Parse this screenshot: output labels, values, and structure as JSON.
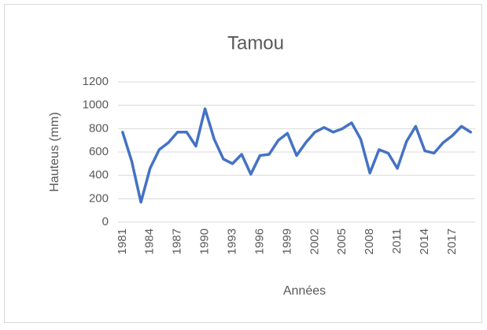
{
  "chart_data": {
    "type": "line",
    "title": "Tamou",
    "x_label": "Années",
    "y_label": "Hauteus (mm)",
    "categories": [
      "1981",
      null,
      null,
      "1984",
      null,
      null,
      "1987",
      null,
      null,
      "1990",
      null,
      null,
      "1993",
      null,
      null,
      "1996",
      null,
      null,
      "1999",
      null,
      null,
      "2002",
      null,
      null,
      "2005",
      null,
      null,
      "2008",
      null,
      null,
      "2011",
      null,
      null,
      "2014",
      null,
      null,
      "2017",
      null,
      null
    ],
    "series": [
      {
        "name": "Tamou",
        "color": "#4472c4",
        "values": [
          770,
          520,
          170,
          460,
          620,
          680,
          770,
          770,
          650,
          970,
          710,
          540,
          500,
          580,
          410,
          570,
          580,
          700,
          760,
          570,
          680,
          770,
          810,
          770,
          800,
          850,
          710,
          420,
          620,
          590,
          460,
          690,
          820,
          610,
          590,
          680,
          740,
          820,
          770
        ]
      }
    ],
    "ylim": [
      0,
      1200
    ],
    "yticks": [
      0,
      200,
      400,
      600,
      800,
      1000,
      1200
    ],
    "grid": true
  }
}
